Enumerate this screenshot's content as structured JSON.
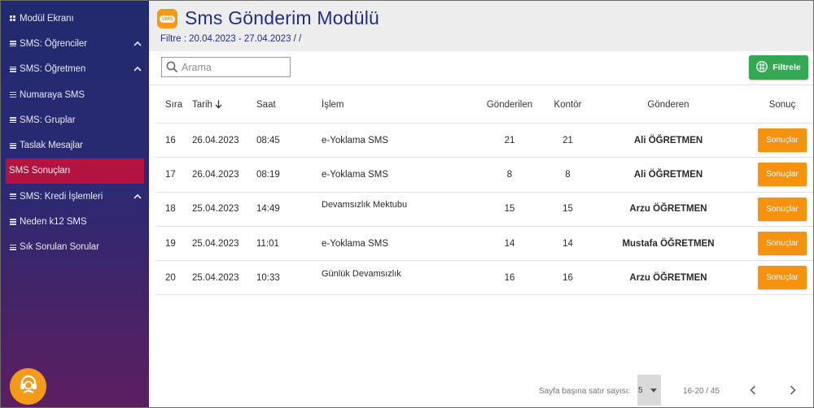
{
  "sidebar": {
    "items": [
      {
        "label": "Modül Ekranı"
      },
      {
        "label": "SMS: Öğrenciler"
      },
      {
        "label": "SMS: Öğretmen"
      },
      {
        "label": "Numaraya SMS"
      },
      {
        "label": "SMS: Gruplar"
      },
      {
        "label": "Taslak Mesajlar"
      },
      {
        "label": "SMS Sonuçları"
      },
      {
        "label": "SMS: Kredi İşlemleri"
      },
      {
        "label": "Neden k12 SMS"
      },
      {
        "label": "Sık Sorulan Sorular"
      }
    ]
  },
  "header": {
    "icon_text": "SMS",
    "title": "Sms Gönderim Modülü",
    "filter": "Filtre : 20.04.2023 - 27.04.2023 /  /"
  },
  "toolbar": {
    "search_placeholder": "Arama",
    "filter_button": "Filtrele"
  },
  "table": {
    "columns": {
      "sira": "Sıra",
      "tarih": "Tarih",
      "saat": "Saat",
      "islem": "İşlem",
      "gonderilen": "Gönderilen",
      "kontor": "Kontör",
      "gonderen": "Gönderen",
      "sonuc": "Sonuç"
    },
    "rows": [
      {
        "sira": "16",
        "tarih": "26.04.2023",
        "saat": "08:45",
        "islem": "e-Yoklama SMS",
        "gonderilen": "21",
        "kontor": "21",
        "gonderen": "Ali ÖĞRETMEN",
        "sonuc": "Sonuçlar"
      },
      {
        "sira": "17",
        "tarih": "26.04.2023",
        "saat": "08:19",
        "islem": "e-Yoklama SMS",
        "gonderilen": "8",
        "kontor": "8",
        "gonderen": "Ali ÖĞRETMEN",
        "sonuc": "Sonuçlar"
      },
      {
        "sira": "18",
        "tarih": "25.04.2023",
        "saat": "14:49",
        "islem": "Devamsızlık Mektubu",
        "gonderilen": "15",
        "kontor": "15",
        "gonderen": "Arzu ÖĞRETMEN",
        "sonuc": "Sonuçlar"
      },
      {
        "sira": "19",
        "tarih": "25.04.2023",
        "saat": "11:01",
        "islem": "e-Yoklama SMS",
        "gonderilen": "14",
        "kontor": "14",
        "gonderen": "Mustafa ÖĞRETMEN",
        "sonuc": "Sonuçlar"
      },
      {
        "sira": "20",
        "tarih": "25.04.2023",
        "saat": "10:33",
        "islem": "Günlük Devamsızlık",
        "gonderilen": "16",
        "kontor": "16",
        "gonderen": "Arzu ÖĞRETMEN",
        "sonuc": "Sonuçlar"
      }
    ]
  },
  "pagination": {
    "rows_per_page_label": "Sayfa başına satır sayısı:",
    "rows_per_page": "5",
    "range": "16-20 / 45"
  },
  "colors": {
    "sidebar_top": "#222a6e",
    "sidebar_bottom": "#5c1f60",
    "active_item": "#b3143f",
    "title": "#1f2f86",
    "filter_button": "#34a853",
    "result_button": "#f7920f",
    "help_button": "#f39a1a"
  },
  "icons": {
    "menu_grid": "grid-icon",
    "menu_list": "list-icon",
    "expand": "chevron-up-icon",
    "search": "search-icon",
    "filter": "table-icon",
    "sort": "arrow-down-icon",
    "prev": "chevron-left-icon",
    "next": "chevron-right-icon",
    "help": "support-icon"
  }
}
